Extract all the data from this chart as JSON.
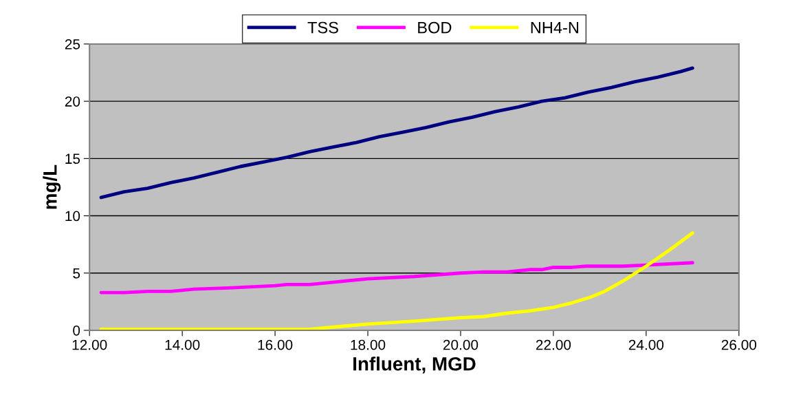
{
  "chart_data": {
    "type": "line",
    "xlabel": "Influent, MGD",
    "ylabel": "mg/L",
    "xlim": [
      12,
      26
    ],
    "xticks": [
      {
        "value": 12,
        "label": "12.00"
      },
      {
        "value": 14,
        "label": "14.00"
      },
      {
        "value": 16,
        "label": "16.00"
      },
      {
        "value": 18,
        "label": "18.00"
      },
      {
        "value": 20,
        "label": "20.00"
      },
      {
        "value": 22,
        "label": "22.00"
      },
      {
        "value": 24,
        "label": "24.00"
      },
      {
        "value": 26,
        "label": "26.00"
      }
    ],
    "ylim": [
      0,
      25
    ],
    "yticks": [
      0,
      5,
      10,
      15,
      20,
      25
    ],
    "grid": "y",
    "legend": "top",
    "marker": "none",
    "line_style": "solid",
    "series": [
      {
        "name": "TSS",
        "color": "#000080",
        "x": [
          12.25,
          12.75,
          13.25,
          13.75,
          14.25,
          14.75,
          15.25,
          15.75,
          16.25,
          16.75,
          17.25,
          17.75,
          18.25,
          18.75,
          19.25,
          19.75,
          20.25,
          20.75,
          21.25,
          21.75,
          22.25,
          22.75,
          23.25,
          23.75,
          24.25,
          24.75,
          25
        ],
        "values": [
          11.6,
          12.1,
          12.4,
          12.9,
          13.3,
          13.8,
          14.3,
          14.7,
          15.1,
          15.6,
          16.0,
          16.4,
          16.9,
          17.3,
          17.7,
          18.2,
          18.6,
          19.1,
          19.5,
          20.0,
          20.3,
          20.8,
          21.2,
          21.7,
          22.1,
          22.6,
          22.9
        ]
      },
      {
        "name": "BOD",
        "color": "#ff00ff",
        "x": [
          12.25,
          12.75,
          13.25,
          13.75,
          14.25,
          15,
          16,
          16.25,
          16.75,
          17.25,
          18,
          19,
          20,
          20.5,
          21,
          21.5,
          21.75,
          22,
          22.4,
          22.7,
          23.5,
          24,
          25
        ],
        "values": [
          3.3,
          3.3,
          3.4,
          3.4,
          3.6,
          3.7,
          3.9,
          4.0,
          4.0,
          4.2,
          4.5,
          4.7,
          5.0,
          5.1,
          5.1,
          5.3,
          5.3,
          5.5,
          5.5,
          5.6,
          5.6,
          5.7,
          5.9
        ]
      },
      {
        "name": "NH4-N",
        "color": "#ffff00",
        "x": [
          12.25,
          16.75,
          17.3,
          18,
          19,
          20,
          20.5,
          21,
          21.5,
          22,
          22.4,
          22.8,
          23.1,
          23.5,
          24,
          24.5,
          25
        ],
        "values": [
          0.1,
          0.1,
          0.3,
          0.55,
          0.8,
          1.1,
          1.2,
          1.5,
          1.7,
          2.0,
          2.4,
          2.9,
          3.4,
          4.3,
          5.6,
          7.0,
          8.5
        ]
      }
    ]
  }
}
